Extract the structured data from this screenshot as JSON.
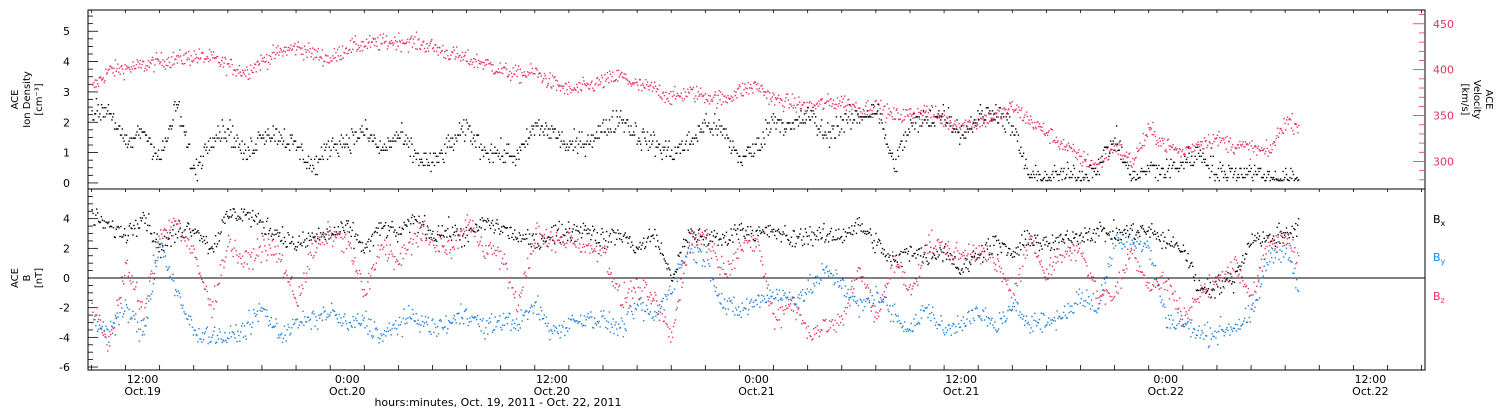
{
  "figure": {
    "xlabel": "hours:minutes, Oct. 19, 2011 - Oct. 22, 2011",
    "time_ticks": [
      {
        "t": 12,
        "hm": "12:00",
        "date": "Oct.19"
      },
      {
        "t": 24,
        "hm": "0:00",
        "date": "Oct.20"
      },
      {
        "t": 36,
        "hm": "12:00",
        "date": "Oct.20"
      },
      {
        "t": 48,
        "hm": "0:00",
        "date": "Oct.21"
      },
      {
        "t": 60,
        "hm": "12:00",
        "date": "Oct.21"
      },
      {
        "t": 72,
        "hm": "0:00",
        "date": "Oct.22"
      },
      {
        "t": 84,
        "hm": "12:00",
        "date": "Oct.22"
      }
    ]
  },
  "chart_data": [
    {
      "type": "scatter",
      "title": "",
      "xlabel": "hours:minutes, Oct. 19, 2011 - Oct. 22, 2011",
      "xlim": [
        8.8,
        87.2
      ],
      "ylabel_left": [
        "ACE",
        "Ion Density",
        "[cm⁻³]"
      ],
      "ylabel_right": [
        "ACE",
        "Velocity",
        "[km/s]"
      ],
      "ylim_left": [
        -0.2,
        5.7
      ],
      "ylim_right": [
        270,
        465
      ],
      "yticks_left": [
        0,
        1,
        2,
        3,
        4,
        5
      ],
      "yticks_right": [
        300,
        350,
        400,
        450
      ],
      "series": [
        {
          "axis": "left",
          "color": "#000000",
          "x": [
            9,
            10,
            11,
            12,
            13,
            14,
            15,
            16,
            17,
            18,
            19,
            20,
            21,
            22,
            23,
            24,
            25,
            26,
            27,
            28,
            29,
            30,
            31,
            32,
            33,
            34,
            35,
            36,
            37,
            38,
            39,
            40,
            41,
            42,
            43,
            44,
            45,
            46,
            47,
            48,
            49,
            50,
            51,
            52,
            53,
            54,
            55,
            56,
            57,
            58,
            59,
            60,
            61,
            62,
            63,
            64,
            65,
            66,
            67,
            68,
            69,
            70,
            71,
            72,
            73,
            74,
            75,
            76,
            77,
            78,
            79,
            79.8
          ],
          "y": [
            2.3,
            2.5,
            1.2,
            1.8,
            0.8,
            2.6,
            0.3,
            1.6,
            1.8,
            0.9,
            1.7,
            1.6,
            1.2,
            0.5,
            1.3,
            1.4,
            1.7,
            1.1,
            1.6,
            0.9,
            0.6,
            1.3,
            1.8,
            1.1,
            1.0,
            0.9,
            1.9,
            1.7,
            1.2,
            1.4,
            1.8,
            2.2,
            1.6,
            1.3,
            1.0,
            1.3,
            2.0,
            1.7,
            0.8,
            1.2,
            2.2,
            1.8,
            2.3,
            1.6,
            2.0,
            2.2,
            2.5,
            0.6,
            1.9,
            2.1,
            2.3,
            1.6,
            2.2,
            2.4,
            1.8,
            0.2,
            0.2,
            0.3,
            0.2,
            0.6,
            1.5,
            0.1,
            0.5,
            0.4,
            0.7,
            1.0,
            0.3,
            0.4,
            0.4,
            0.2,
            0.1,
            0.1
          ]
        },
        {
          "axis": "right",
          "color": "#e8305f",
          "x": [
            9,
            10,
            11,
            12,
            13,
            14,
            15,
            16,
            17,
            18,
            19,
            20,
            21,
            22,
            23,
            24,
            25,
            26,
            27,
            28,
            29,
            30,
            31,
            32,
            33,
            34,
            35,
            36,
            37,
            38,
            39,
            40,
            41,
            42,
            43,
            44,
            45,
            46,
            47,
            48,
            49,
            50,
            51,
            52,
            53,
            54,
            55,
            56,
            57,
            58,
            59,
            60,
            61,
            62,
            63,
            64,
            65,
            66,
            67,
            68,
            69,
            70,
            71,
            72,
            73,
            74,
            75,
            76,
            77,
            78,
            79,
            79.8
          ],
          "y": [
            380,
            400,
            402,
            405,
            410,
            412,
            415,
            413,
            405,
            398,
            410,
            420,
            425,
            418,
            412,
            425,
            428,
            430,
            432,
            430,
            425,
            418,
            412,
            408,
            400,
            395,
            398,
            386,
            378,
            382,
            388,
            394,
            383,
            380,
            370,
            376,
            372,
            368,
            378,
            383,
            368,
            364,
            360,
            364,
            366,
            358,
            360,
            350,
            352,
            356,
            345,
            340,
            344,
            350,
            360,
            345,
            332,
            318,
            304,
            296,
            318,
            300,
            335,
            318,
            310,
            322,
            325,
            318,
            315,
            310,
            345,
            340
          ]
        }
      ]
    },
    {
      "type": "scatter",
      "title": "",
      "xlabel": "hours:minutes, Oct. 19, 2011 - Oct. 22, 2011",
      "xlim": [
        8.8,
        87.2
      ],
      "ylabel_left": [
        "ACE",
        "B",
        "[nT]"
      ],
      "ylim": [
        -6.2,
        6.0
      ],
      "yticks": [
        -6,
        -4,
        -2,
        0,
        2,
        4
      ],
      "zero_line": true,
      "legend_placement": "right",
      "series": [
        {
          "name": "Bx",
          "name_base": "B",
          "name_sub": "x",
          "color": "#000000",
          "x": [
            9,
            10,
            11,
            12,
            13,
            14,
            15,
            16,
            17,
            18,
            19,
            20,
            21,
            22,
            23,
            24,
            25,
            26,
            27,
            28,
            29,
            30,
            31,
            32,
            33,
            34,
            35,
            36,
            37,
            38,
            39,
            40,
            41,
            42,
            43,
            44,
            45,
            46,
            47,
            48,
            49,
            50,
            51,
            52,
            53,
            54,
            55,
            56,
            57,
            58,
            59,
            60,
            61,
            62,
            63,
            64,
            65,
            66,
            67,
            68,
            69,
            70,
            71,
            72,
            73,
            74,
            75,
            76,
            77,
            78,
            79,
            79.8
          ],
          "y": [
            4.2,
            3.5,
            3.0,
            4.4,
            2.0,
            3.2,
            3.5,
            2.0,
            4.3,
            4.4,
            3.6,
            3.0,
            2.2,
            2.8,
            3.0,
            3.4,
            2.0,
            3.5,
            3.0,
            4.0,
            3.0,
            3.2,
            2.8,
            3.8,
            3.4,
            2.8,
            2.4,
            3.0,
            3.2,
            3.4,
            2.6,
            3.0,
            2.0,
            3.0,
            0.0,
            3.0,
            2.8,
            2.6,
            3.4,
            3.0,
            3.2,
            2.6,
            3.0,
            2.8,
            3.0,
            3.6,
            2.4,
            1.0,
            2.0,
            1.5,
            2.0,
            0.5,
            1.8,
            2.4,
            1.6,
            2.8,
            2.2,
            2.6,
            3.0,
            3.2,
            3.0,
            3.2,
            3.2,
            2.5,
            2.0,
            -0.8,
            -0.5,
            0.0,
            2.8,
            2.6,
            3.2,
            3.4
          ]
        },
        {
          "name": "By",
          "name_base": "B",
          "name_sub": "y",
          "color": "#1a7fdf",
          "x": [
            9,
            10,
            11,
            12,
            13,
            14,
            15,
            16,
            17,
            18,
            19,
            20,
            21,
            22,
            23,
            24,
            25,
            26,
            27,
            28,
            29,
            30,
            31,
            32,
            33,
            34,
            35,
            36,
            37,
            38,
            39,
            40,
            41,
            42,
            43,
            44,
            45,
            46,
            47,
            48,
            49,
            50,
            51,
            52,
            53,
            54,
            55,
            56,
            57,
            58,
            59,
            60,
            61,
            62,
            63,
            64,
            65,
            66,
            67,
            68,
            69,
            70,
            71,
            72,
            73,
            74,
            75,
            76,
            77,
            78,
            79,
            79.8
          ],
          "y": [
            -2.8,
            -3.5,
            -2.0,
            -3.8,
            2.5,
            -1.2,
            -3.6,
            -3.8,
            -4.0,
            -3.4,
            -2.0,
            -3.8,
            -3.0,
            -2.8,
            -2.2,
            -3.2,
            -2.8,
            -4.0,
            -3.0,
            -2.6,
            -3.4,
            -3.0,
            -2.2,
            -3.4,
            -2.8,
            -3.0,
            -1.8,
            -3.6,
            -3.0,
            -2.6,
            -2.8,
            -3.4,
            -1.8,
            -2.6,
            -0.4,
            2.0,
            1.5,
            -1.8,
            -2.2,
            -1.5,
            -1.0,
            -1.4,
            -0.8,
            0.5,
            -0.3,
            -2.0,
            -1.0,
            -2.4,
            -3.4,
            -2.0,
            -3.6,
            -2.8,
            -2.4,
            -3.2,
            -2.0,
            -2.8,
            -3.0,
            -2.4,
            -1.2,
            -2.0,
            2.6,
            2.6,
            2.0,
            -2.8,
            -3.0,
            -3.8,
            -3.6,
            -3.2,
            -2.6,
            1.5,
            2.2,
            -1.0
          ]
        },
        {
          "name": "Bz",
          "name_base": "B",
          "name_sub": "z",
          "color": "#e8305f",
          "x": [
            9,
            10,
            11,
            12,
            13,
            14,
            15,
            16,
            17,
            18,
            19,
            20,
            21,
            22,
            23,
            24,
            25,
            26,
            27,
            28,
            29,
            30,
            31,
            32,
            33,
            34,
            35,
            36,
            37,
            38,
            39,
            40,
            41,
            42,
            43,
            44,
            45,
            46,
            47,
            48,
            49,
            50,
            51,
            52,
            53,
            54,
            55,
            56,
            57,
            58,
            59,
            60,
            61,
            62,
            63,
            64,
            65,
            66,
            67,
            68,
            69,
            70,
            71,
            72,
            73,
            74,
            75,
            76,
            77,
            78,
            79,
            79.8
          ],
          "y": [
            -2.0,
            -4.5,
            1.0,
            -2.5,
            3.2,
            3.8,
            1.5,
            -2.0,
            2.5,
            1.0,
            2.2,
            1.5,
            -1.5,
            2.0,
            3.0,
            2.5,
            -1.2,
            2.4,
            1.0,
            3.0,
            2.6,
            1.8,
            3.8,
            2.2,
            1.5,
            -1.8,
            3.0,
            2.4,
            2.8,
            2.0,
            2.0,
            -1.5,
            -0.5,
            -1.5,
            -4.0,
            2.5,
            3.0,
            0.5,
            2.0,
            2.6,
            -2.8,
            -1.5,
            -3.6,
            -3.2,
            -3.0,
            1.0,
            -3.0,
            1.5,
            -1.0,
            2.4,
            2.0,
            1.5,
            2.0,
            1.0,
            -1.2,
            2.5,
            0.5,
            1.8,
            2.0,
            -1.2,
            -1.0,
            2.0,
            -0.5,
            -0.2,
            -2.6,
            -1.0,
            -0.2,
            1.0,
            -1.2,
            2.2,
            2.8,
            1.5
          ]
        }
      ]
    }
  ]
}
